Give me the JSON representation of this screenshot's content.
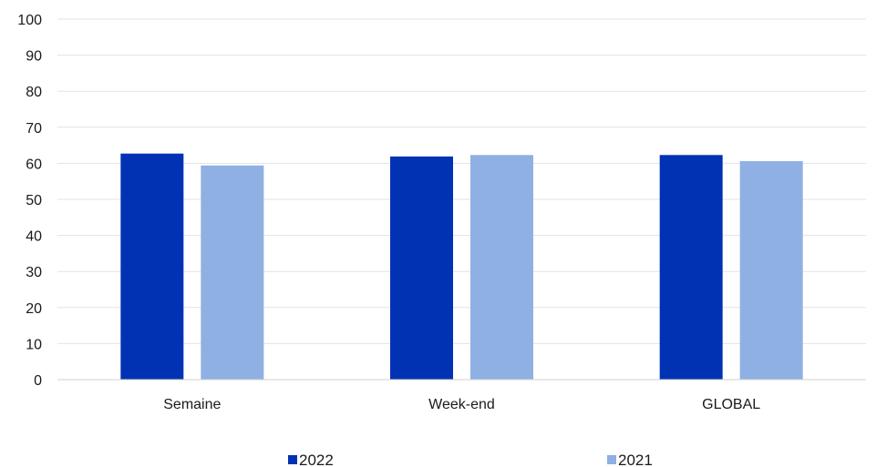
{
  "chart_data": {
    "type": "bar",
    "categories": [
      "Semaine",
      "Week-end",
      "GLOBAL"
    ],
    "series": [
      {
        "name": "2022",
        "values": [
          62.7,
          61.9,
          62.3
        ],
        "color": "#0232b4"
      },
      {
        "name": "2021",
        "values": [
          59.4,
          62.3,
          60.6
        ],
        "color": "#8fb0e3"
      }
    ],
    "ylim": [
      0,
      100
    ],
    "yticks": [
      "0",
      "10",
      "20",
      "30",
      "40",
      "50",
      "60",
      "70",
      "80",
      "90",
      "100"
    ],
    "grid": true,
    "legend_position": "bottom"
  }
}
